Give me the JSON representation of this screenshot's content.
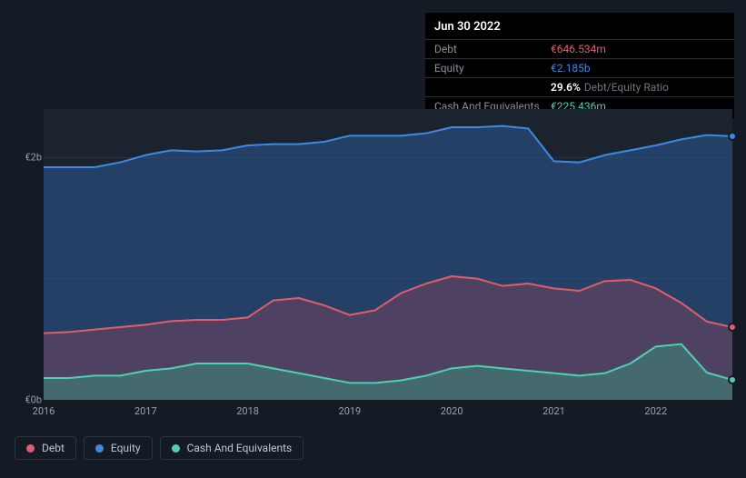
{
  "tooltip": {
    "date": "Jun 30 2022",
    "rows": [
      {
        "label": "Debt",
        "value": "€646.534m",
        "cls": "debt"
      },
      {
        "label": "Equity",
        "value": "€2.185b",
        "cls": "equity"
      },
      {
        "label": "",
        "ratio_value": "29.6%",
        "ratio_label": "Debt/Equity Ratio"
      },
      {
        "label": "Cash And Equivalents",
        "value": "€225.436m",
        "cls": "cash"
      }
    ]
  },
  "chart": {
    "type": "area",
    "background_color": "#151b24",
    "grid_color": "#2b333f",
    "x_range": [
      2016,
      2022.75
    ],
    "y_range_eur_b": [
      0,
      2.4
    ],
    "y_ticks": [
      {
        "v": 0,
        "label": "€0b"
      },
      {
        "v": 1.0,
        "label": ""
      },
      {
        "v": 2.0,
        "label": "€2b"
      }
    ],
    "x_ticks": [
      2016,
      2017,
      2018,
      2019,
      2020,
      2021,
      2022
    ],
    "plot_area_fill": "#1b232e",
    "series": {
      "equity": {
        "label": "Equity",
        "stroke": "#3d8ae6",
        "fill": "rgba(44,90,150,0.55)",
        "stroke_width": 2,
        "points": [
          [
            2016.0,
            1.92
          ],
          [
            2016.25,
            1.92
          ],
          [
            2016.5,
            1.92
          ],
          [
            2016.75,
            1.96
          ],
          [
            2017.0,
            2.02
          ],
          [
            2017.25,
            2.06
          ],
          [
            2017.5,
            2.05
          ],
          [
            2017.75,
            2.06
          ],
          [
            2018.0,
            2.1
          ],
          [
            2018.25,
            2.11
          ],
          [
            2018.5,
            2.11
          ],
          [
            2018.75,
            2.13
          ],
          [
            2019.0,
            2.18
          ],
          [
            2019.25,
            2.18
          ],
          [
            2019.5,
            2.18
          ],
          [
            2019.75,
            2.2
          ],
          [
            2020.0,
            2.25
          ],
          [
            2020.25,
            2.25
          ],
          [
            2020.5,
            2.26
          ],
          [
            2020.75,
            2.24
          ],
          [
            2021.0,
            1.97
          ],
          [
            2021.25,
            1.96
          ],
          [
            2021.5,
            2.02
          ],
          [
            2021.75,
            2.06
          ],
          [
            2022.0,
            2.1
          ],
          [
            2022.25,
            2.15
          ],
          [
            2022.5,
            2.185
          ],
          [
            2022.75,
            2.175
          ]
        ]
      },
      "debt": {
        "label": "Debt",
        "stroke": "#e15d6b",
        "fill": "rgba(160,70,90,0.35)",
        "stroke_width": 2,
        "points": [
          [
            2016.0,
            0.55
          ],
          [
            2016.25,
            0.56
          ],
          [
            2016.5,
            0.58
          ],
          [
            2016.75,
            0.6
          ],
          [
            2017.0,
            0.62
          ],
          [
            2017.25,
            0.65
          ],
          [
            2017.5,
            0.66
          ],
          [
            2017.75,
            0.66
          ],
          [
            2018.0,
            0.68
          ],
          [
            2018.25,
            0.82
          ],
          [
            2018.5,
            0.84
          ],
          [
            2018.75,
            0.78
          ],
          [
            2019.0,
            0.7
          ],
          [
            2019.25,
            0.74
          ],
          [
            2019.5,
            0.88
          ],
          [
            2019.75,
            0.96
          ],
          [
            2020.0,
            1.02
          ],
          [
            2020.25,
            1.0
          ],
          [
            2020.5,
            0.94
          ],
          [
            2020.75,
            0.96
          ],
          [
            2021.0,
            0.92
          ],
          [
            2021.25,
            0.9
          ],
          [
            2021.5,
            0.98
          ],
          [
            2021.75,
            0.99
          ],
          [
            2022.0,
            0.92
          ],
          [
            2022.25,
            0.8
          ],
          [
            2022.5,
            0.646
          ],
          [
            2022.75,
            0.6
          ]
        ]
      },
      "cash": {
        "label": "Cash And Equivalents",
        "stroke": "#4fd0b0",
        "fill": "rgba(60,140,125,0.55)",
        "stroke_width": 2,
        "points": [
          [
            2016.0,
            0.18
          ],
          [
            2016.25,
            0.18
          ],
          [
            2016.5,
            0.2
          ],
          [
            2016.75,
            0.2
          ],
          [
            2017.0,
            0.24
          ],
          [
            2017.25,
            0.26
          ],
          [
            2017.5,
            0.3
          ],
          [
            2017.75,
            0.3
          ],
          [
            2018.0,
            0.3
          ],
          [
            2018.25,
            0.26
          ],
          [
            2018.5,
            0.22
          ],
          [
            2018.75,
            0.18
          ],
          [
            2019.0,
            0.14
          ],
          [
            2019.25,
            0.14
          ],
          [
            2019.5,
            0.16
          ],
          [
            2019.75,
            0.2
          ],
          [
            2020.0,
            0.26
          ],
          [
            2020.25,
            0.28
          ],
          [
            2020.5,
            0.26
          ],
          [
            2020.75,
            0.24
          ],
          [
            2021.0,
            0.22
          ],
          [
            2021.25,
            0.2
          ],
          [
            2021.5,
            0.22
          ],
          [
            2021.75,
            0.3
          ],
          [
            2022.0,
            0.44
          ],
          [
            2022.25,
            0.46
          ],
          [
            2022.5,
            0.225
          ],
          [
            2022.75,
            0.165
          ]
        ]
      }
    },
    "end_markers": [
      {
        "series": "equity",
        "color": "#3d8ae6"
      },
      {
        "series": "debt",
        "color": "#e15d6b"
      },
      {
        "series": "cash",
        "color": "#4fd0b0"
      }
    ]
  },
  "legend": {
    "items": [
      {
        "name": "debt",
        "label": "Debt",
        "color": "#e15d6b"
      },
      {
        "name": "equity",
        "label": "Equity",
        "color": "#3d8ae6"
      },
      {
        "name": "cash",
        "label": "Cash And Equivalents",
        "color": "#4fd0b0"
      }
    ]
  }
}
